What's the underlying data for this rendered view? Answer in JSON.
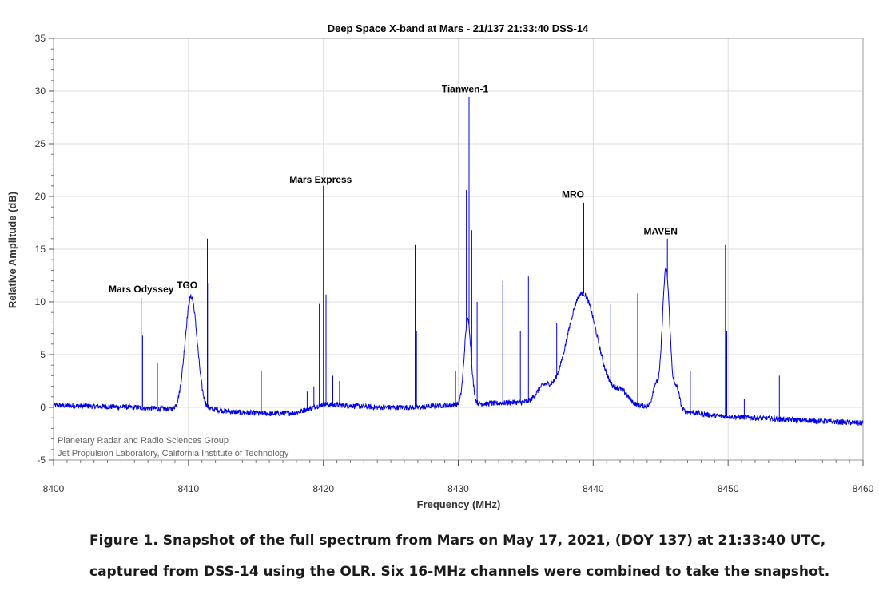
{
  "chart_data": {
    "type": "line",
    "title": "Deep Space X-band at Mars - 21/137 21:33:40 DSS-14",
    "xlabel": "Frequency (MHz)",
    "ylabel": "Relative Amplitude (dB)",
    "xlim": [
      8400,
      8460
    ],
    "ylim": [
      -5,
      35
    ],
    "x_ticks": [
      "8400",
      "8410",
      "8420",
      "8430",
      "8440",
      "8450",
      "8460"
    ],
    "y_ticks": [
      "-5",
      "0",
      "5",
      "10",
      "15",
      "20",
      "25",
      "30",
      "35"
    ],
    "grid": true,
    "line_color": "#0000ee",
    "series": [
      {
        "baseline": [
          [
            8400,
            0.2
          ],
          [
            8406,
            0.0
          ],
          [
            8409,
            -0.2
          ],
          [
            8412,
            -0.2
          ],
          [
            8413,
            -0.4
          ],
          [
            8416,
            -0.6
          ],
          [
            8418,
            -0.5
          ],
          [
            8420,
            0.3
          ],
          [
            8424,
            0.0
          ],
          [
            8427,
            0.0
          ],
          [
            8429,
            0.2
          ],
          [
            8435,
            0.5
          ],
          [
            8438,
            0.5
          ],
          [
            8442,
            0.3
          ],
          [
            8445,
            0.0
          ],
          [
            8449,
            -0.8
          ],
          [
            8452,
            -1.0
          ],
          [
            8455,
            -1.2
          ],
          [
            8460,
            -1.5
          ]
        ],
        "bumps": [
          {
            "center": 8410.2,
            "height": 10.7,
            "width": 0.45
          },
          {
            "center": 8430.7,
            "height": 8.0,
            "width": 0.25
          },
          {
            "center": 8436.3,
            "height": 1.3,
            "width": 0.5
          },
          {
            "center": 8439.2,
            "height": 10.4,
            "width": 1.1
          },
          {
            "center": 8442.1,
            "height": 1.1,
            "width": 0.5
          },
          {
            "center": 8445.4,
            "height": 13.2,
            "width": 0.28
          },
          {
            "center": 8446.2,
            "height": 2.0,
            "width": 0.2
          },
          {
            "center": 8444.6,
            "height": 2.0,
            "width": 0.2
          }
        ],
        "spikes": [
          [
            8406.5,
            10.4
          ],
          [
            8406.6,
            6.8
          ],
          [
            8407.7,
            4.2
          ],
          [
            8411.4,
            16.0
          ],
          [
            8411.5,
            11.8
          ],
          [
            8415.4,
            3.4
          ],
          [
            8419.7,
            9.8
          ],
          [
            8420.0,
            21.0
          ],
          [
            8420.2,
            10.7
          ],
          [
            8420.7,
            3.0
          ],
          [
            8421.2,
            2.5
          ],
          [
            8418.8,
            1.5
          ],
          [
            8419.3,
            2.0
          ],
          [
            8426.8,
            15.4
          ],
          [
            8426.9,
            7.2
          ],
          [
            8429.8,
            3.4
          ],
          [
            8430.6,
            20.6
          ],
          [
            8430.8,
            29.4
          ],
          [
            8431.0,
            16.8
          ],
          [
            8431.4,
            10.0
          ],
          [
            8433.3,
            12.0
          ],
          [
            8434.5,
            15.2
          ],
          [
            8434.6,
            7.2
          ],
          [
            8435.2,
            12.4
          ],
          [
            8437.3,
            8.0
          ],
          [
            8439.3,
            19.4
          ],
          [
            8441.3,
            9.8
          ],
          [
            8443.3,
            10.8
          ],
          [
            8445.5,
            16.0
          ],
          [
            8446.0,
            4.0
          ],
          [
            8447.2,
            3.4
          ],
          [
            8449.8,
            15.4
          ],
          [
            8449.9,
            7.2
          ],
          [
            8451.2,
            0.8
          ],
          [
            8453.8,
            3.0
          ]
        ]
      }
    ],
    "annotations": [
      {
        "text": "Mars Odyssey",
        "x": 8406.5,
        "y": 10.9
      },
      {
        "text": "TGO",
        "x": 8409.9,
        "y": 11.3
      },
      {
        "text": "Mars Express",
        "x": 8419.8,
        "y": 21.3
      },
      {
        "text": "Tianwen-1",
        "x": 8430.5,
        "y": 29.9
      },
      {
        "text": "MRO",
        "x": 8438.5,
        "y": 19.9
      },
      {
        "text": "MAVEN",
        "x": 8445.0,
        "y": 16.4
      }
    ],
    "credit": [
      "Planetary Radar and Radio Sciences Group",
      "Jet Propulsion Laboratory, California Institute of Technology"
    ]
  },
  "caption": {
    "line1": "Figure 1. Snapshot of the full spectrum from Mars on May 17, 2021, (DOY 137) at 21:33:40 UTC,",
    "line2": "captured from DSS-14 using the OLR. Six 16-MHz channels were combined to take the snapshot."
  }
}
